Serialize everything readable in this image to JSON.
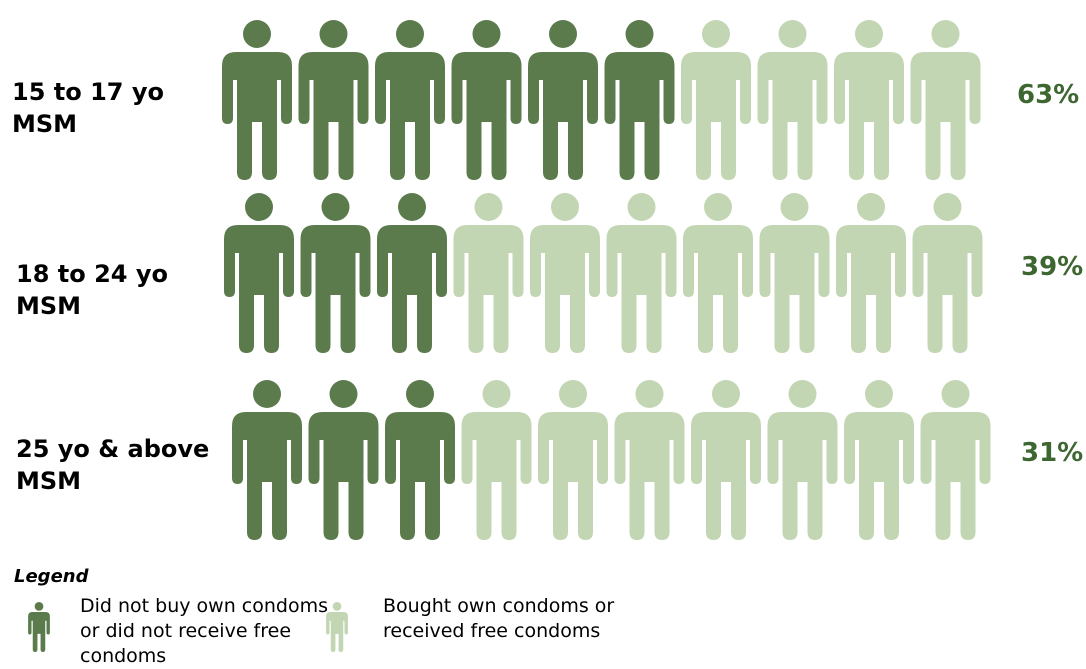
{
  "chart_data": {
    "type": "pictogram",
    "icons_per_row": 10,
    "colors": {
      "did_not": "#5b7b4c",
      "bought": "#c2d6b3",
      "percent_text": "#3d6630"
    },
    "rows": [
      {
        "label_line1": "15 to 17 yo",
        "label_line2": "MSM",
        "value": 63,
        "value_label": "63%"
      },
      {
        "label_line1": "18 to 24 yo",
        "label_line2": "MSM",
        "value": 39,
        "value_label": "39%"
      },
      {
        "label_line1": "25 yo & above",
        "label_line2": "MSM",
        "value": 31,
        "value_label": "31%"
      }
    ],
    "legend": {
      "title": "Legend",
      "items": [
        {
          "key": "did_not",
          "text": "Did not buy own condoms or did not receive free condoms"
        },
        {
          "key": "bought",
          "text": "Bought own condoms or received free condoms"
        }
      ]
    }
  }
}
